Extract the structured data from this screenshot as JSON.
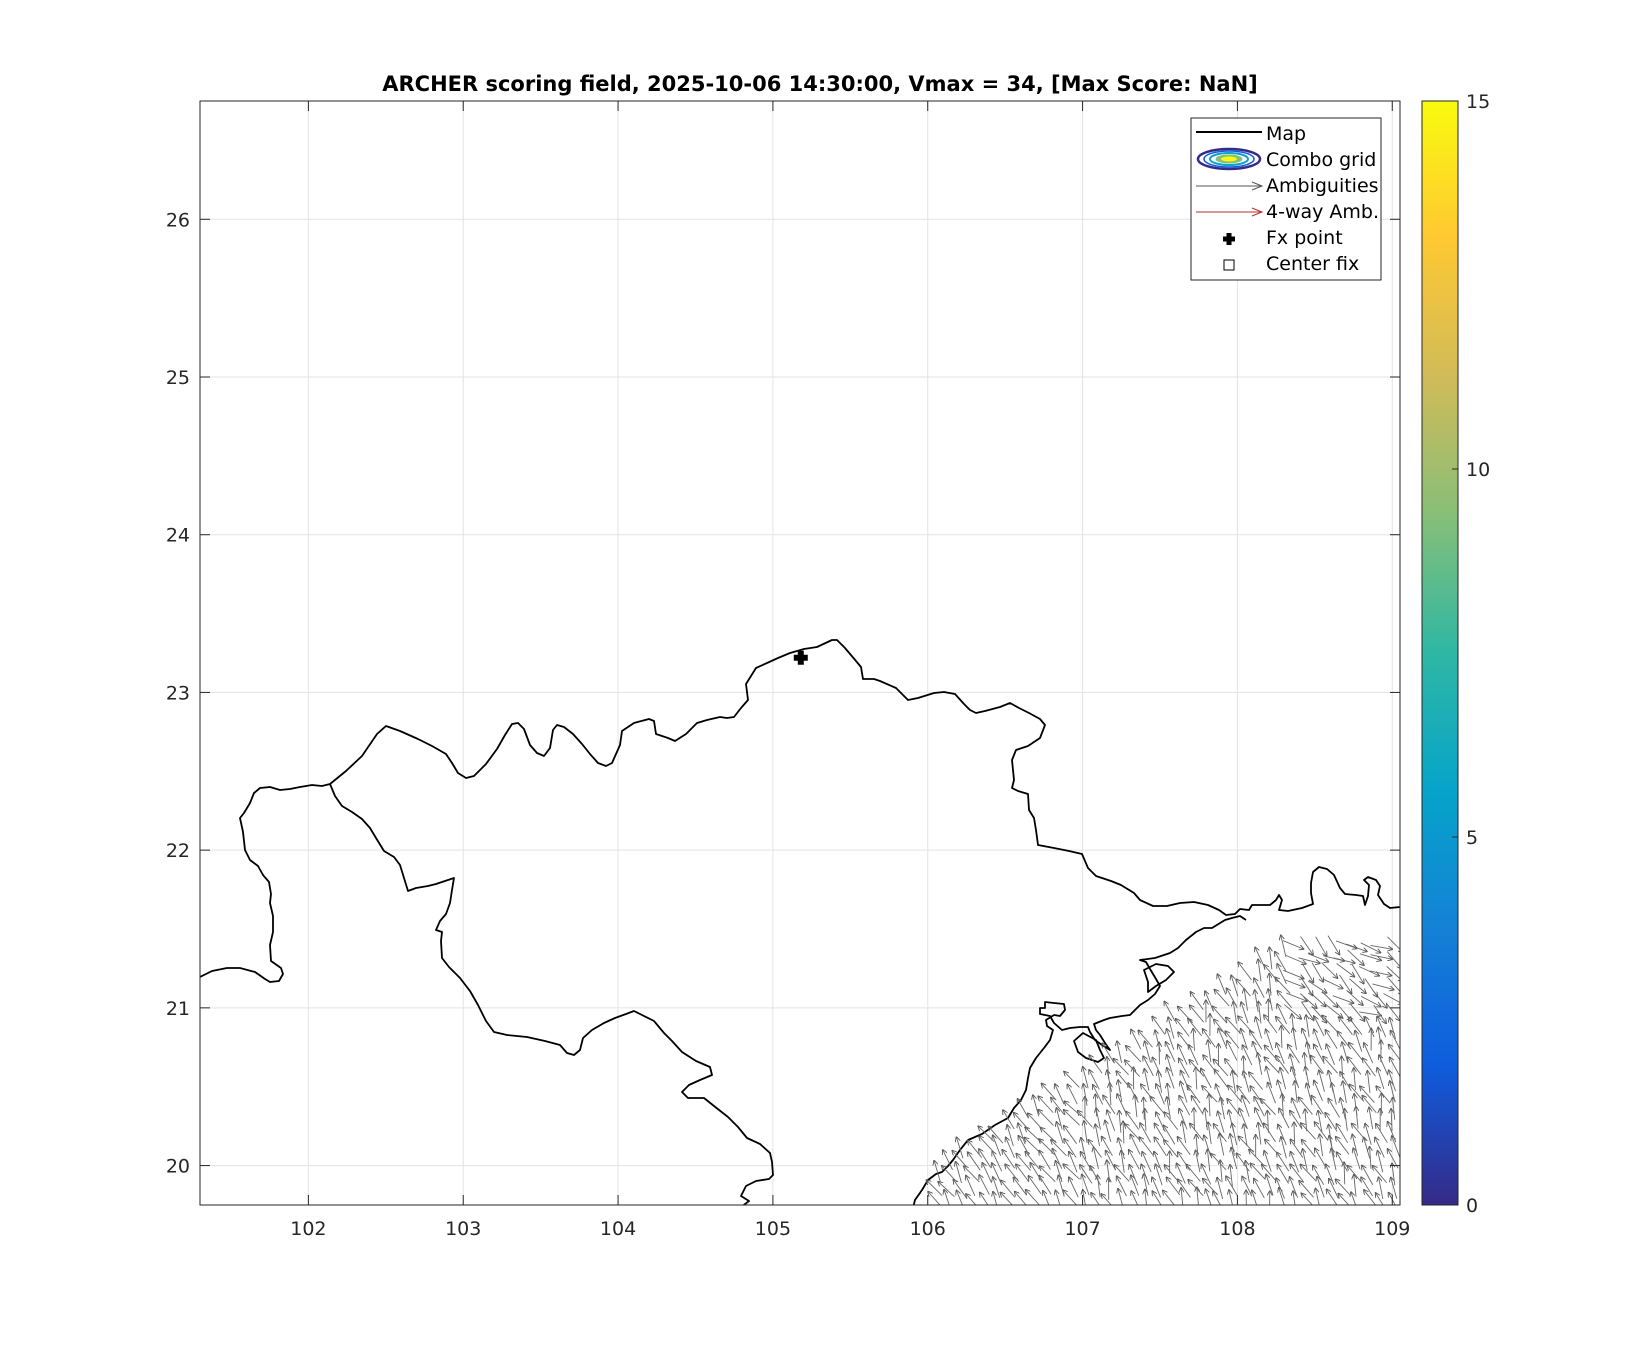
{
  "title": "ARCHER scoring field, 2025-10-06 14:30:00, Vmax = 34, [Max Score: NaN]",
  "legend": {
    "items": [
      {
        "label": "Map",
        "icon": "black-line"
      },
      {
        "label": "Combo grid",
        "icon": "colored-ellipse"
      },
      {
        "label": "Ambiguities",
        "icon": "gray-arrow"
      },
      {
        "label": "4-way Amb.",
        "icon": "red-arrow"
      },
      {
        "label": "Fx point",
        "icon": "black-plus"
      },
      {
        "label": "Center fix",
        "icon": "open-square"
      }
    ],
    "placement": "top-right"
  },
  "colorbar": {
    "min": 0,
    "max": 15,
    "ticks": [
      "0",
      "5",
      "10",
      "15"
    ],
    "colormap": [
      "#352a87",
      "#0f5cdd",
      "#1481d6",
      "#06a4ca",
      "#2eb7a4",
      "#87bf77",
      "#d1bb59",
      "#fec832",
      "#f9fb0e"
    ]
  },
  "chart_data": {
    "type": "map",
    "title": "ARCHER scoring field, 2025-10-06 14:30:00, Vmax = 34, [Max Score: NaN]",
    "xlim": [
      101.3,
      109.05
    ],
    "ylim": [
      19.75,
      26.75
    ],
    "xticks": [
      "102",
      "103",
      "104",
      "105",
      "106",
      "107",
      "108",
      "109"
    ],
    "yticks": [
      "20",
      "21",
      "22",
      "23",
      "24",
      "25",
      "26"
    ],
    "grid": true,
    "fx_point": {
      "lon": 105.18,
      "lat": 23.22
    },
    "ambiguity_vectors_region": "lower-right (Gulf of Tonkin), approx lon 106-109, lat 19.75-21.5",
    "colors": {
      "map": "#000000",
      "ambiguities": "#555555",
      "four_way": "#b03030",
      "grid": "#e6e6e6"
    }
  }
}
